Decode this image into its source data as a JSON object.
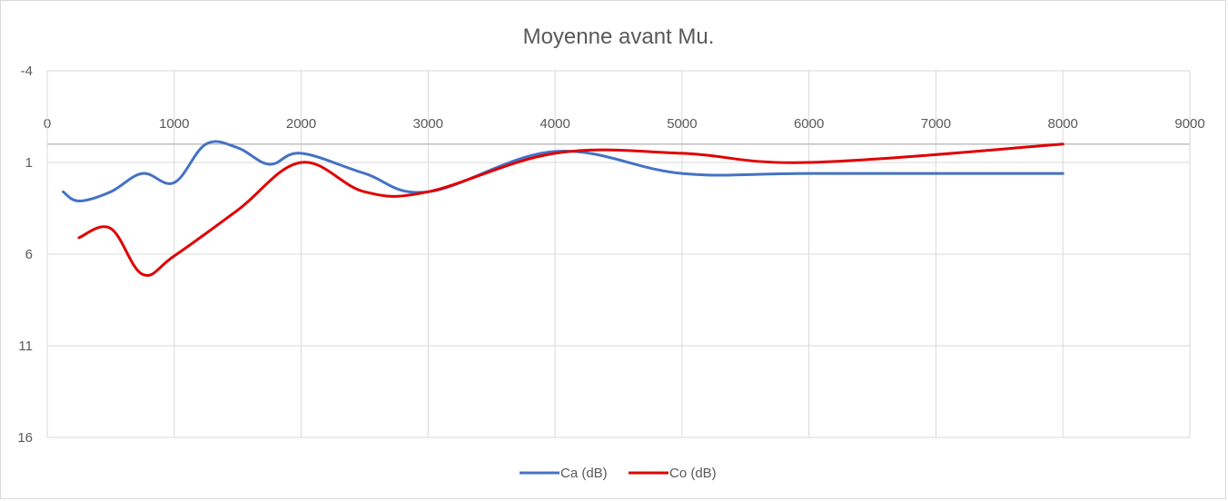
{
  "chart_data": {
    "type": "line",
    "title": "Moyenne avant Mu.",
    "xlabel": "",
    "ylabel": "",
    "xlim": [
      0,
      9000
    ],
    "ylim": [
      -4,
      16
    ],
    "y_axis_reversed": true,
    "grid": true,
    "legend_position": "bottom",
    "x_ticks": [
      "0",
      "1000",
      "2000",
      "3000",
      "4000",
      "5000",
      "6000",
      "7000",
      "8000",
      "9000"
    ],
    "y_ticks": [
      "-4",
      "1",
      "6",
      "11",
      "16"
    ],
    "series": [
      {
        "name": "Ca (dB)",
        "color": "#4472C4",
        "points": [
          {
            "x": 125,
            "y": 2.6
          },
          {
            "x": 250,
            "y": 3.1
          },
          {
            "x": 500,
            "y": 2.6
          },
          {
            "x": 750,
            "y": 1.6
          },
          {
            "x": 1000,
            "y": 2.1
          },
          {
            "x": 1250,
            "y": 0.0
          },
          {
            "x": 1500,
            "y": 0.2
          },
          {
            "x": 1750,
            "y": 1.1
          },
          {
            "x": 2000,
            "y": 0.5
          },
          {
            "x": 2500,
            "y": 1.6
          },
          {
            "x": 3000,
            "y": 2.6
          },
          {
            "x": 4000,
            "y": 0.4
          },
          {
            "x": 5000,
            "y": 1.6
          },
          {
            "x": 6000,
            "y": 1.6
          },
          {
            "x": 8000,
            "y": 1.6
          }
        ]
      },
      {
        "name": "Co (dB)",
        "color": "#E00000",
        "points": [
          {
            "x": 250,
            "y": 5.1
          },
          {
            "x": 500,
            "y": 4.6
          },
          {
            "x": 750,
            "y": 7.1
          },
          {
            "x": 1000,
            "y": 6.1
          },
          {
            "x": 1500,
            "y": 3.6
          },
          {
            "x": 2000,
            "y": 1.0
          },
          {
            "x": 2500,
            "y": 2.6
          },
          {
            "x": 3000,
            "y": 2.6
          },
          {
            "x": 4000,
            "y": 0.5
          },
          {
            "x": 5000,
            "y": 0.5
          },
          {
            "x": 6000,
            "y": 1.0
          },
          {
            "x": 8000,
            "y": 0.0
          }
        ]
      }
    ]
  }
}
